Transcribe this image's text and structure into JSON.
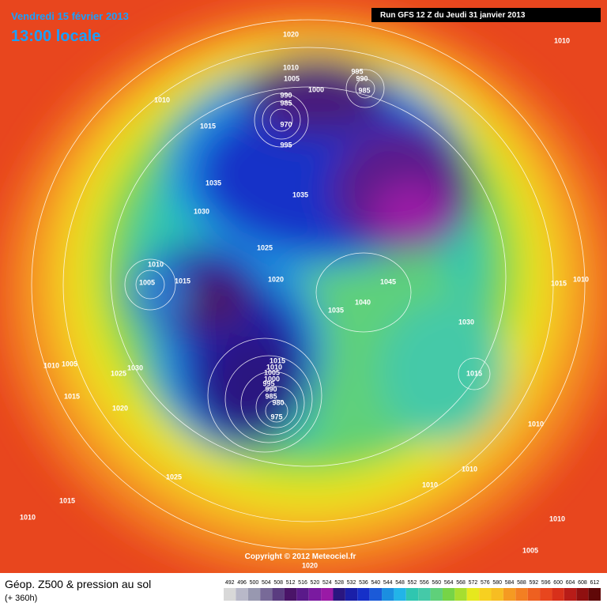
{
  "header": {
    "date": "Vendredi 15 février 2013",
    "time": "13:00 locale",
    "run": "Run GFS 12 Z du Jeudi 31 janvier 2013"
  },
  "isobar_labels": [
    "1020",
    "1010",
    "1010",
    "995",
    "990",
    "1005",
    "1000",
    "985",
    "1010",
    "990",
    "985",
    "970",
    "1015",
    "995",
    "1035",
    "1035",
    "1030",
    "1025",
    "1010",
    "1005",
    "1015",
    "1020",
    "1045",
    "1015",
    "1010",
    "1040",
    "1035",
    "1030",
    "1015",
    "1010",
    "1005",
    "1030",
    "1025",
    "1015",
    "1010",
    "1005",
    "1000",
    "995",
    "990",
    "985",
    "980",
    "975",
    "1015",
    "1020",
    "1010",
    "1025",
    "1010",
    "1010",
    "1015",
    "1010",
    "1010",
    "1005",
    "1020"
  ],
  "copyright": "Copyright © 2012 Meteociel.fr",
  "footer": {
    "title": "Géop. Z500 & pression au sol",
    "subtitle": "(+ 360h)"
  },
  "scale": [
    492,
    496,
    500,
    504,
    508,
    512,
    516,
    520,
    524,
    528,
    532,
    536,
    540,
    544,
    548,
    552,
    556,
    560,
    564,
    568,
    572,
    576,
    580,
    584,
    588,
    592,
    596,
    600,
    604,
    608,
    612
  ]
}
